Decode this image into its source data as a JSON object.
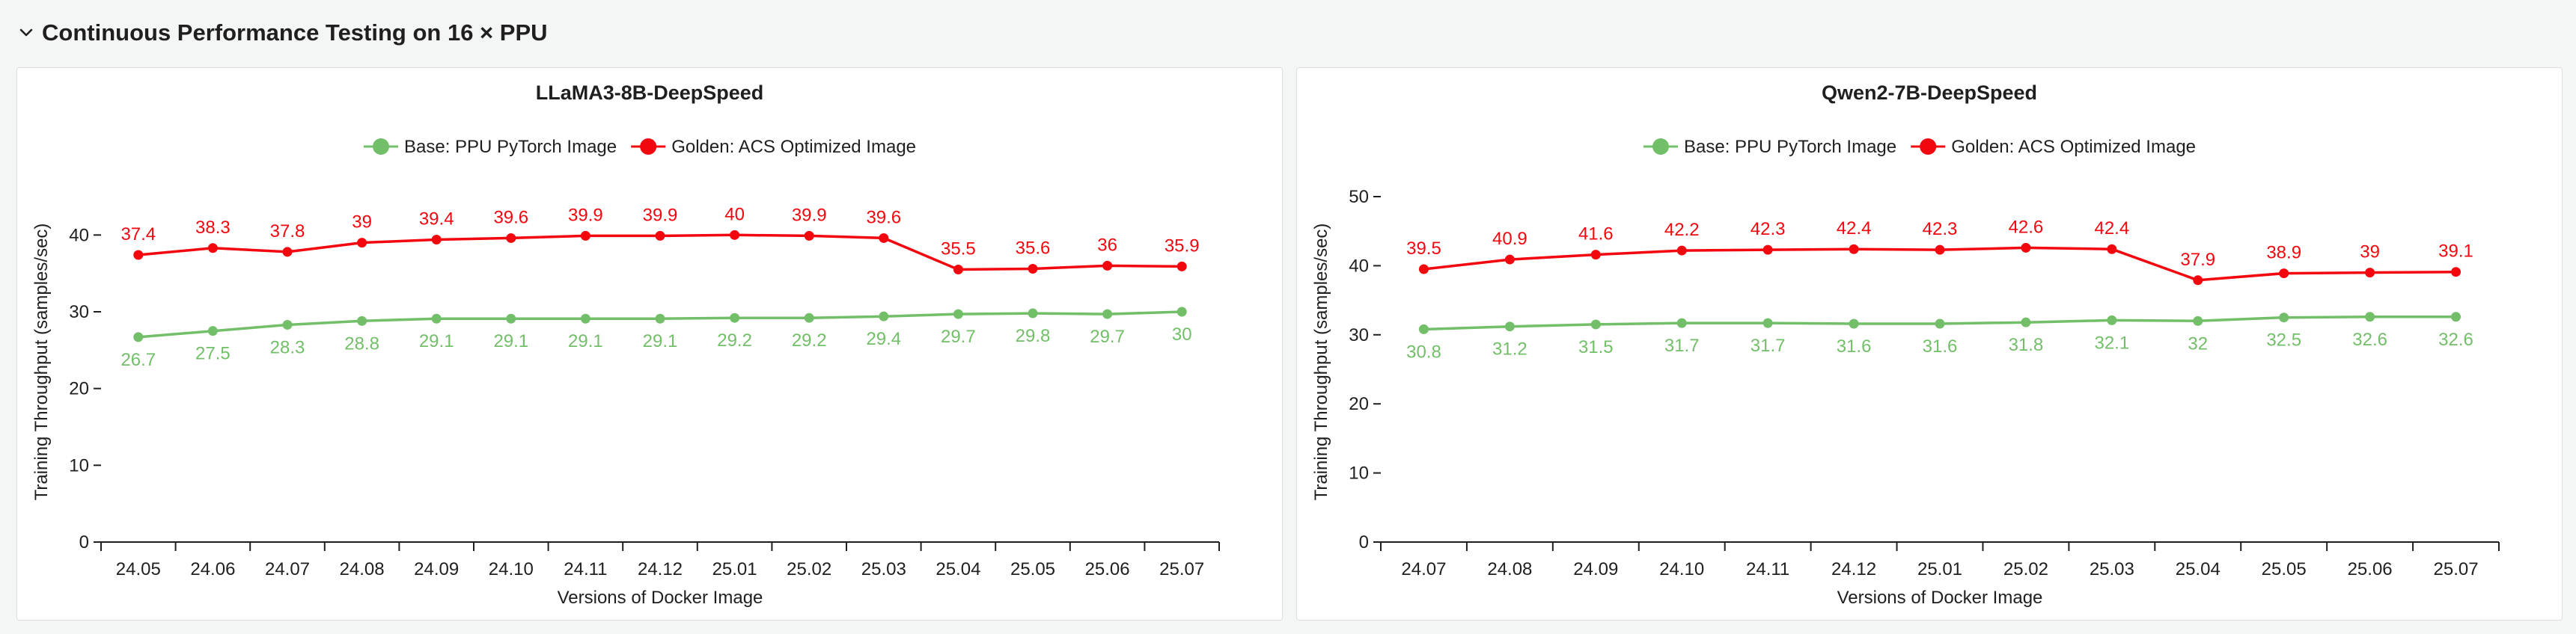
{
  "section": {
    "title": "Continuous Performance Testing on 16 × PPU",
    "toggle_icon": "chevron-down-icon"
  },
  "colors": {
    "base": "#73bf69",
    "golden": "#f2070f",
    "axis": "#1f1f1f"
  },
  "chart_data": [
    {
      "type": "line",
      "title": "LLaMA3-8B-DeepSpeed",
      "xlabel": "Versions of Docker Image",
      "ylabel": "Training Throughput (samples/sec)",
      "ylim": [
        0,
        45
      ],
      "yticks": [
        0,
        10,
        20,
        30,
        40
      ],
      "grid": false,
      "legend_position": "top-center",
      "categories": [
        "24.05",
        "24.06",
        "24.07",
        "24.08",
        "24.09",
        "24.10",
        "24.11",
        "24.12",
        "25.01",
        "25.02",
        "25.03",
        "25.04",
        "25.05",
        "25.06",
        "25.07"
      ],
      "series": [
        {
          "name": "Base: PPU PyTorch Image",
          "color": "#73bf69",
          "values": [
            26.7,
            27.5,
            28.3,
            28.8,
            29.1,
            29.1,
            29.1,
            29.1,
            29.2,
            29.2,
            29.4,
            29.7,
            29.8,
            29.7,
            30
          ],
          "labels": [
            "26.7",
            "27.5",
            "28.3",
            "28.8",
            "29.1",
            "29.1",
            "29.1",
            "29.1",
            "29.2",
            "29.2",
            "29.4",
            "29.7",
            "29.8",
            "29.7",
            "30"
          ],
          "label_position": "below"
        },
        {
          "name": "Golden: ACS Optimized Image",
          "color": "#f2070f",
          "values": [
            37.4,
            38.3,
            37.8,
            39,
            39.4,
            39.6,
            39.9,
            39.9,
            40,
            39.9,
            39.6,
            35.5,
            35.6,
            36,
            35.9
          ],
          "labels": [
            "37.4",
            "38.3",
            "37.8",
            "39",
            "39.4",
            "39.6",
            "39.9",
            "39.9",
            "40",
            "39.9",
            "39.6",
            "35.5",
            "35.6",
            "36",
            "35.9"
          ],
          "label_position": "above"
        }
      ]
    },
    {
      "type": "line",
      "title": "Qwen2-7B-DeepSpeed",
      "xlabel": "Versions of Docker Image",
      "ylabel": "Training Throughput (samples/sec)",
      "ylim": [
        0,
        50
      ],
      "yticks": [
        0,
        10,
        20,
        30,
        40,
        50
      ],
      "grid": false,
      "legend_position": "top-center",
      "categories": [
        "24.07",
        "24.08",
        "24.09",
        "24.10",
        "24.11",
        "24.12",
        "25.01",
        "25.02",
        "25.03",
        "25.04",
        "25.05",
        "25.06",
        "25.07"
      ],
      "series": [
        {
          "name": "Base: PPU PyTorch Image",
          "color": "#73bf69",
          "values": [
            30.8,
            31.2,
            31.5,
            31.7,
            31.7,
            31.6,
            31.6,
            31.8,
            32.1,
            32,
            32.5,
            32.6,
            32.6
          ],
          "labels": [
            "30.8",
            "31.2",
            "31.5",
            "31.7",
            "31.7",
            "31.6",
            "31.6",
            "31.8",
            "32.1",
            "32",
            "32.5",
            "32.6",
            "32.6"
          ],
          "label_position": "below"
        },
        {
          "name": "Golden: ACS Optimized Image",
          "color": "#f2070f",
          "values": [
            39.5,
            40.9,
            41.6,
            42.2,
            42.3,
            42.4,
            42.3,
            42.6,
            42.4,
            37.9,
            38.9,
            39,
            39.1
          ],
          "labels": [
            "39.5",
            "40.9",
            "41.6",
            "42.2",
            "42.3",
            "42.4",
            "42.3",
            "42.6",
            "42.4",
            "37.9",
            "38.9",
            "39",
            "39.1"
          ],
          "label_position": "above"
        }
      ]
    }
  ]
}
